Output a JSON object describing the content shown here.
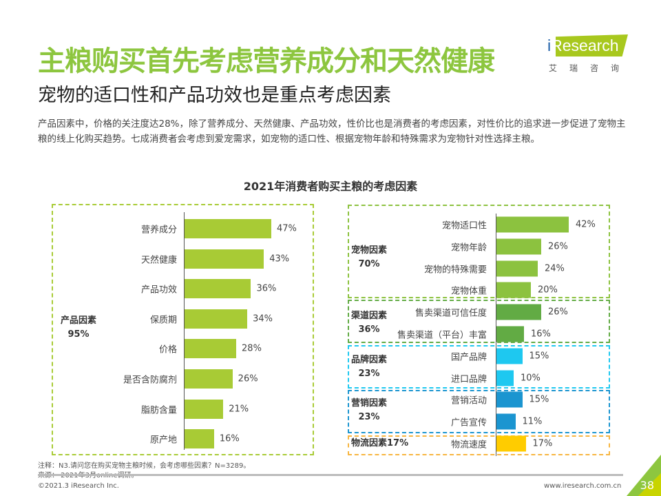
{
  "header": {
    "title": "主粮购买首先考虑营养成分和天然健康",
    "subtitle": "宠物的适口性和产品功效也是重点考虑因素",
    "paragraph": "产品因素中，价格的关注度达28%，除了营养成分、天然健康、产品功效，性价比也是消费者的考虑因素，对性价比的追求进一步促进了宠物主粮的线上化购买趋势。七成消费者会考虑到爱宠需求，如宠物的适口性、根据宠物年龄和特殊需求为宠物针对性选择主粮。"
  },
  "logo": {
    "text_i": "i",
    "text": "Research",
    "cn": "艾瑞咨询"
  },
  "chart_data": {
    "type": "bar",
    "title": "2021年消费者购买主粮的考虑因素",
    "left": {
      "group": "产品因素",
      "group_value": "95%",
      "color": "#a8cb35",
      "categories": [
        "营养成分",
        "天然健康",
        "产品功效",
        "保质期",
        "价格",
        "是否含防腐剂",
        "脂肪含量",
        "原产地"
      ],
      "values": [
        47,
        43,
        36,
        34,
        28,
        26,
        21,
        16
      ]
    },
    "right": [
      {
        "group": "宠物因素",
        "group_value": "70%",
        "color": "#8cc23f",
        "border": "#8cc23f",
        "categories": [
          "宠物适口性",
          "宠物年龄",
          "宠物的特殊需要",
          "宠物体重"
        ],
        "values": [
          42,
          26,
          24,
          20
        ]
      },
      {
        "group": "渠道因素",
        "group_value": "36%",
        "color": "#62ab44",
        "border": "#62ab44",
        "categories": [
          "售卖渠道可信任度",
          "售卖渠道（平台）丰富"
        ],
        "values": [
          26,
          16
        ]
      },
      {
        "group": "品牌因素",
        "group_value": "23%",
        "color": "#1ec8f0",
        "border": "#1ec8f0",
        "categories": [
          "国产品牌",
          "进口品牌"
        ],
        "values": [
          15,
          10
        ]
      },
      {
        "group": "营销因素",
        "group_value": "23%",
        "color": "#1b95d0",
        "border": "#1b95d0",
        "categories": [
          "营销活动",
          "广告宣传"
        ],
        "values": [
          15,
          11
        ]
      },
      {
        "group": "物流因素17%",
        "group_value": "",
        "color": "#ffcc00",
        "border": "#f7b53f",
        "categories": [
          "物流速度"
        ],
        "values": [
          17
        ]
      }
    ]
  },
  "notes": {
    "note": "注释：N3.请问您在购买宠物主粮时候，会考虑哪些因素？N=3289。",
    "source": "来源： 2021年3月online调研。"
  },
  "footer": {
    "copyright": "©2021.3 iResearch Inc.",
    "url": "www.iresearch.com.cn",
    "page": "38"
  }
}
